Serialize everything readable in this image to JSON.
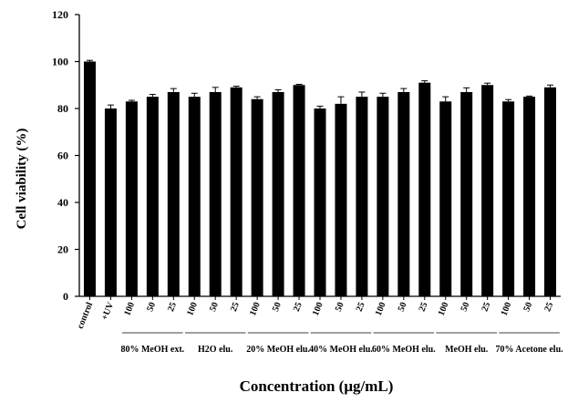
{
  "chart_data": {
    "type": "bar",
    "title": "",
    "xlabel": "Concentration (μg/mL)",
    "ylabel": "Cell viability (%)",
    "ylim": [
      0,
      120
    ],
    "yticks": [
      "0",
      "20",
      "40",
      "60",
      "80",
      "100",
      "120"
    ],
    "categories": [
      "control",
      "+UV",
      "100",
      "50",
      "25",
      "100",
      "50",
      "25",
      "100",
      "50",
      "25",
      "100",
      "50",
      "25",
      "100",
      "50",
      "25",
      "100",
      "50",
      "25",
      "100",
      "50",
      "25"
    ],
    "values": [
      100,
      80,
      83,
      85,
      87,
      85,
      87,
      89,
      84,
      87,
      90,
      80,
      82,
      85,
      85,
      87,
      91,
      83,
      87,
      90,
      83,
      85,
      89
    ],
    "errors": [
      0.5,
      1.5,
      0.5,
      1,
      1.5,
      1.5,
      2,
      0.5,
      1,
      1,
      0.3,
      1,
      3,
      2,
      1.5,
      1.5,
      0.8,
      2,
      1.8,
      0.8,
      0.8,
      0.3,
      1
    ],
    "groups": [
      {
        "label": "80% MeOH ext.",
        "start": 2,
        "end": 4
      },
      {
        "label": "H2O elu.",
        "start": 5,
        "end": 7
      },
      {
        "label": "20% MeOH elu.",
        "start": 8,
        "end": 10
      },
      {
        "label": "40% MeOH elu.",
        "start": 11,
        "end": 13
      },
      {
        "label": "60% MeOH elu.",
        "start": 14,
        "end": 16
      },
      {
        "label": "MeOH elu.",
        "start": 17,
        "end": 19
      },
      {
        "label": "70% Acetone elu.",
        "start": 20,
        "end": 22
      }
    ],
    "legend": "none",
    "grid": false,
    "bar_color": "#000000"
  }
}
